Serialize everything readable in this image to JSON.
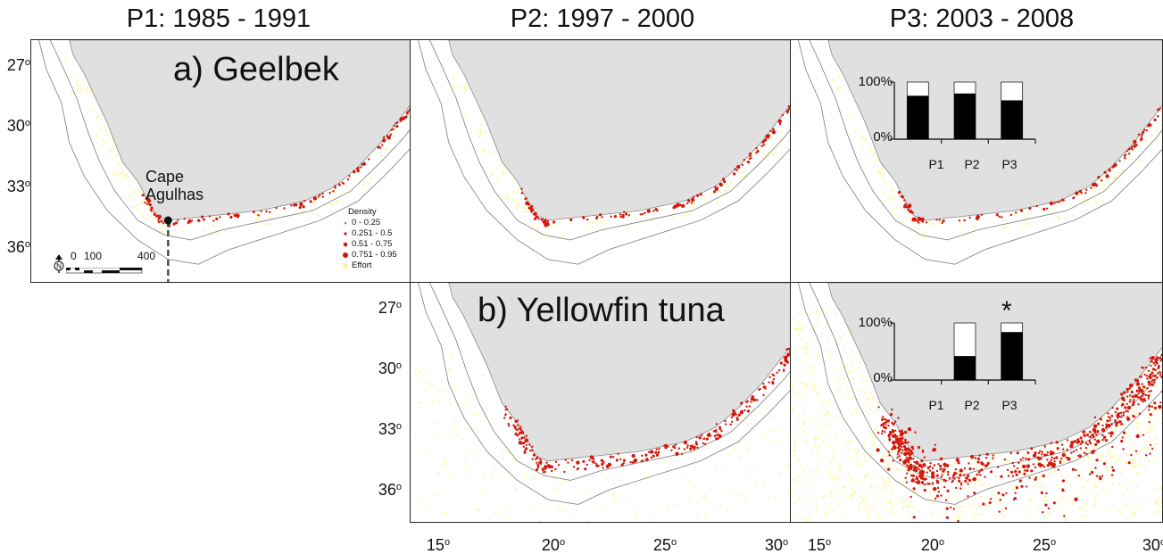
{
  "columns": [
    {
      "title": "P1: 1985 - 1991"
    },
    {
      "title": "P2: 1997 - 2000"
    },
    {
      "title": "P3: 2003 - 2008"
    }
  ],
  "rows": [
    {
      "label": "a) Geelbek"
    },
    {
      "label": "b) Yellowfin tuna"
    }
  ],
  "lat_labels": {
    "top": [
      "27",
      "30",
      "33",
      "36"
    ],
    "bottom": [
      "27",
      "30",
      "33",
      "36"
    ],
    "deg": "o"
  },
  "lon_labels": [
    "15",
    "20",
    "25",
    "30",
    "15",
    "20",
    "25",
    "30"
  ],
  "annotation": {
    "line1": "Cape",
    "line2": "Agulhas"
  },
  "legend": {
    "title": "Density",
    "items": [
      "0 - 0.25",
      "0.251 - 0.5",
      "0.51 - 0.75",
      "0.751 - 0.95",
      "Effort"
    ],
    "colors": {
      "density": "#d21a0e",
      "effort": "#fff9b0"
    }
  },
  "scale_bar": {
    "labels": [
      "0",
      "100",
      "400"
    ],
    "north": "N"
  },
  "colors": {
    "land": "#e0e0e0",
    "contour": "#8a8a8a"
  },
  "inset_charts": [
    {
      "panel": "a-P3",
      "type": "stacked-bar",
      "ylabels": [
        "100%",
        "0%"
      ],
      "categories": [
        "P1",
        "P2",
        "P3"
      ],
      "values": [
        0.76,
        0.8,
        0.68
      ],
      "star": ""
    },
    {
      "panel": "b-P3",
      "type": "stacked-bar",
      "ylabels": [
        "100%",
        "0%"
      ],
      "categories": [
        "P1",
        "P2",
        "P3"
      ],
      "values": [
        0,
        0.42,
        0.84
      ],
      "star": "*"
    }
  ]
}
